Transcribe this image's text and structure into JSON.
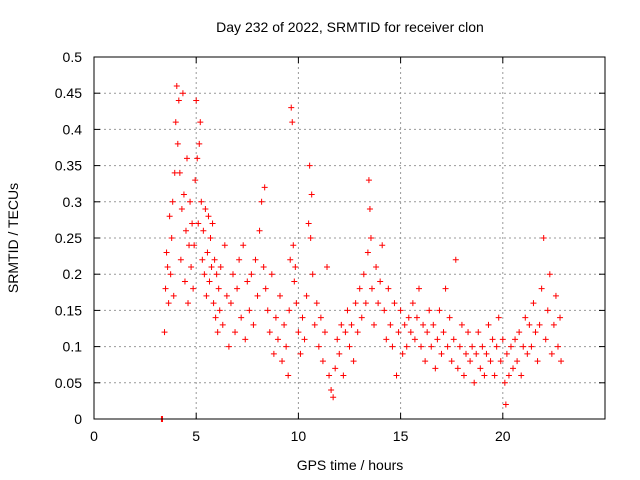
{
  "chart_data": {
    "type": "scatter",
    "title": "Day 232 of 2022, SRMTID for receiver clon",
    "xlabel": "GPS time / hours",
    "ylabel": "SRMTID / TECUs",
    "xlim": [
      0,
      25
    ],
    "ylim": [
      0,
      0.5
    ],
    "x_ticks": [
      0,
      5,
      10,
      15,
      20
    ],
    "x_tick_labels": [
      "0",
      "5",
      "10",
      "15",
      "20"
    ],
    "y_ticks": [
      0,
      0.05,
      0.1,
      0.15,
      0.2,
      0.25,
      0.3,
      0.35,
      0.4,
      0.45,
      0.5
    ],
    "y_tick_labels": [
      "0",
      "0.05",
      "0.1",
      "0.15",
      "0.2",
      "0.25",
      "0.3",
      "0.35",
      "0.4",
      "0.45",
      "0.5"
    ],
    "grid": true,
    "marker": "+",
    "series": [
      {
        "name": "SRMTID",
        "color": "#ff0000",
        "points": [
          [
            3.3,
            0.0
          ],
          [
            3.35,
            0.0
          ],
          [
            3.45,
            0.12
          ],
          [
            3.5,
            0.18
          ],
          [
            3.55,
            0.23
          ],
          [
            3.6,
            0.21
          ],
          [
            3.65,
            0.16
          ],
          [
            3.7,
            0.28
          ],
          [
            3.75,
            0.2
          ],
          [
            3.8,
            0.25
          ],
          [
            3.85,
            0.3
          ],
          [
            3.9,
            0.17
          ],
          [
            3.95,
            0.34
          ],
          [
            4.0,
            0.41
          ],
          [
            4.05,
            0.46
          ],
          [
            4.1,
            0.38
          ],
          [
            4.15,
            0.44
          ],
          [
            4.2,
            0.34
          ],
          [
            4.25,
            0.22
          ],
          [
            4.3,
            0.29
          ],
          [
            4.35,
            0.45
          ],
          [
            4.4,
            0.31
          ],
          [
            4.45,
            0.19
          ],
          [
            4.5,
            0.26
          ],
          [
            4.55,
            0.36
          ],
          [
            4.6,
            0.16
          ],
          [
            4.65,
            0.24
          ],
          [
            4.7,
            0.3
          ],
          [
            4.75,
            0.21
          ],
          [
            4.8,
            0.27
          ],
          [
            4.85,
            0.18
          ],
          [
            4.9,
            0.24
          ],
          [
            4.95,
            0.33
          ],
          [
            5.0,
            0.44
          ],
          [
            5.05,
            0.36
          ],
          [
            5.1,
            0.27
          ],
          [
            5.15,
            0.38
          ],
          [
            5.2,
            0.41
          ],
          [
            5.25,
            0.3
          ],
          [
            5.3,
            0.22
          ],
          [
            5.35,
            0.26
          ],
          [
            5.4,
            0.2
          ],
          [
            5.45,
            0.29
          ],
          [
            5.5,
            0.17
          ],
          [
            5.55,
            0.23
          ],
          [
            5.6,
            0.28
          ],
          [
            5.65,
            0.19
          ],
          [
            5.7,
            0.25
          ],
          [
            5.75,
            0.21
          ],
          [
            5.8,
            0.27
          ],
          [
            5.85,
            0.16
          ],
          [
            5.9,
            0.22
          ],
          [
            5.95,
            0.14
          ],
          [
            6.0,
            0.2
          ],
          [
            6.05,
            0.12
          ],
          [
            6.1,
            0.18
          ],
          [
            6.15,
            0.15
          ],
          [
            6.2,
            0.21
          ],
          [
            6.3,
            0.13
          ],
          [
            6.4,
            0.24
          ],
          [
            6.5,
            0.17
          ],
          [
            6.6,
            0.1
          ],
          [
            6.7,
            0.16
          ],
          [
            6.8,
            0.2
          ],
          [
            6.9,
            0.12
          ],
          [
            7.0,
            0.18
          ],
          [
            7.1,
            0.22
          ],
          [
            7.2,
            0.14
          ],
          [
            7.3,
            0.24
          ],
          [
            7.4,
            0.11
          ],
          [
            7.5,
            0.19
          ],
          [
            7.6,
            0.15
          ],
          [
            7.7,
            0.2
          ],
          [
            7.8,
            0.13
          ],
          [
            7.9,
            0.22
          ],
          [
            8.0,
            0.17
          ],
          [
            8.1,
            0.26
          ],
          [
            8.2,
            0.3
          ],
          [
            8.3,
            0.21
          ],
          [
            8.35,
            0.32
          ],
          [
            8.4,
            0.18
          ],
          [
            8.5,
            0.15
          ],
          [
            8.6,
            0.12
          ],
          [
            8.7,
            0.2
          ],
          [
            8.8,
            0.09
          ],
          [
            8.9,
            0.14
          ],
          [
            9.0,
            0.11
          ],
          [
            9.1,
            0.17
          ],
          [
            9.2,
            0.08
          ],
          [
            9.3,
            0.13
          ],
          [
            9.4,
            0.1
          ],
          [
            9.5,
            0.06
          ],
          [
            9.55,
            0.15
          ],
          [
            9.6,
            0.22
          ],
          [
            9.65,
            0.43
          ],
          [
            9.7,
            0.41
          ],
          [
            9.75,
            0.24
          ],
          [
            9.8,
            0.19
          ],
          [
            9.85,
            0.21
          ],
          [
            9.9,
            0.16
          ],
          [
            10.0,
            0.12
          ],
          [
            10.1,
            0.09
          ],
          [
            10.2,
            0.14
          ],
          [
            10.3,
            0.11
          ],
          [
            10.4,
            0.17
          ],
          [
            10.5,
            0.27
          ],
          [
            10.55,
            0.35
          ],
          [
            10.6,
            0.25
          ],
          [
            10.65,
            0.31
          ],
          [
            10.7,
            0.2
          ],
          [
            10.8,
            0.13
          ],
          [
            10.9,
            0.16
          ],
          [
            11.0,
            0.1
          ],
          [
            11.1,
            0.14
          ],
          [
            11.2,
            0.08
          ],
          [
            11.3,
            0.12
          ],
          [
            11.4,
            0.21
          ],
          [
            11.5,
            0.06
          ],
          [
            11.6,
            0.04
          ],
          [
            11.7,
            0.03
          ],
          [
            11.8,
            0.07
          ],
          [
            11.9,
            0.11
          ],
          [
            12.0,
            0.09
          ],
          [
            12.1,
            0.13
          ],
          [
            12.2,
            0.06
          ],
          [
            12.3,
            0.12
          ],
          [
            12.4,
            0.15
          ],
          [
            12.5,
            0.1
          ],
          [
            12.6,
            0.13
          ],
          [
            12.7,
            0.08
          ],
          [
            12.8,
            0.16
          ],
          [
            12.9,
            0.12
          ],
          [
            13.0,
            0.18
          ],
          [
            13.1,
            0.14
          ],
          [
            13.2,
            0.2
          ],
          [
            13.3,
            0.16
          ],
          [
            13.4,
            0.23
          ],
          [
            13.45,
            0.33
          ],
          [
            13.5,
            0.29
          ],
          [
            13.55,
            0.25
          ],
          [
            13.6,
            0.18
          ],
          [
            13.7,
            0.13
          ],
          [
            13.8,
            0.21
          ],
          [
            13.9,
            0.16
          ],
          [
            14.0,
            0.19
          ],
          [
            14.1,
            0.24
          ],
          [
            14.2,
            0.15
          ],
          [
            14.3,
            0.11
          ],
          [
            14.4,
            0.18
          ],
          [
            14.5,
            0.13
          ],
          [
            14.6,
            0.1
          ],
          [
            14.7,
            0.16
          ],
          [
            14.8,
            0.06
          ],
          [
            14.9,
            0.12
          ],
          [
            15.0,
            0.15
          ],
          [
            15.1,
            0.09
          ],
          [
            15.2,
            0.13
          ],
          [
            15.3,
            0.1
          ],
          [
            15.4,
            0.14
          ],
          [
            15.5,
            0.12
          ],
          [
            15.6,
            0.16
          ],
          [
            15.7,
            0.11
          ],
          [
            15.8,
            0.14
          ],
          [
            15.9,
            0.18
          ],
          [
            16.0,
            0.1
          ],
          [
            16.1,
            0.13
          ],
          [
            16.2,
            0.08
          ],
          [
            16.3,
            0.12
          ],
          [
            16.4,
            0.15
          ],
          [
            16.5,
            0.1
          ],
          [
            16.6,
            0.13
          ],
          [
            16.7,
            0.07
          ],
          [
            16.8,
            0.11
          ],
          [
            16.9,
            0.15
          ],
          [
            17.0,
            0.09
          ],
          [
            17.1,
            0.12
          ],
          [
            17.2,
            0.18
          ],
          [
            17.3,
            0.1
          ],
          [
            17.4,
            0.14
          ],
          [
            17.5,
            0.08
          ],
          [
            17.6,
            0.11
          ],
          [
            17.7,
            0.22
          ],
          [
            17.8,
            0.07
          ],
          [
            17.9,
            0.1
          ],
          [
            18.0,
            0.13
          ],
          [
            18.1,
            0.06
          ],
          [
            18.2,
            0.09
          ],
          [
            18.3,
            0.12
          ],
          [
            18.4,
            0.08
          ],
          [
            18.5,
            0.1
          ],
          [
            18.6,
            0.05
          ],
          [
            18.7,
            0.09
          ],
          [
            18.8,
            0.12
          ],
          [
            18.9,
            0.07
          ],
          [
            19.0,
            0.1
          ],
          [
            19.1,
            0.06
          ],
          [
            19.2,
            0.09
          ],
          [
            19.3,
            0.13
          ],
          [
            19.4,
            0.08
          ],
          [
            19.5,
            0.11
          ],
          [
            19.6,
            0.06
          ],
          [
            19.7,
            0.1
          ],
          [
            19.8,
            0.14
          ],
          [
            19.9,
            0.08
          ],
          [
            20.0,
            0.11
          ],
          [
            20.1,
            0.05
          ],
          [
            20.15,
            0.02
          ],
          [
            20.2,
            0.09
          ],
          [
            20.3,
            0.06
          ],
          [
            20.4,
            0.1
          ],
          [
            20.5,
            0.07
          ],
          [
            20.6,
            0.11
          ],
          [
            20.7,
            0.08
          ],
          [
            20.8,
            0.12
          ],
          [
            20.9,
            0.06
          ],
          [
            21.0,
            0.1
          ],
          [
            21.1,
            0.14
          ],
          [
            21.2,
            0.09
          ],
          [
            21.3,
            0.13
          ],
          [
            21.4,
            0.1
          ],
          [
            21.5,
            0.16
          ],
          [
            21.6,
            0.12
          ],
          [
            21.7,
            0.08
          ],
          [
            21.8,
            0.13
          ],
          [
            21.9,
            0.18
          ],
          [
            22.0,
            0.25
          ],
          [
            22.1,
            0.11
          ],
          [
            22.2,
            0.15
          ],
          [
            22.3,
            0.2
          ],
          [
            22.4,
            0.09
          ],
          [
            22.5,
            0.13
          ],
          [
            22.6,
            0.17
          ],
          [
            22.7,
            0.1
          ],
          [
            22.8,
            0.14
          ],
          [
            22.85,
            0.08
          ]
        ]
      }
    ]
  }
}
